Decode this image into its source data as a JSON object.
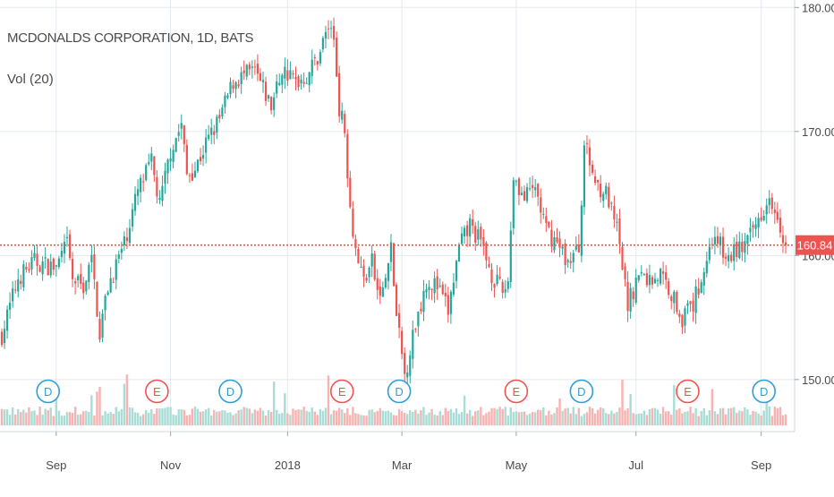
{
  "chart_data": {
    "type": "candlestick",
    "title": "MCDONALDS CORPORATION, 1D, BATS",
    "indicator": "Vol (20)",
    "price_axis": {
      "ticks": [
        {
          "value": 150,
          "label": "150.00"
        },
        {
          "value": 160,
          "label": "160.00"
        },
        {
          "value": 170,
          "label": "170.00"
        },
        {
          "value": 180,
          "label": "180.00"
        }
      ],
      "range": [
        145.8,
        180.6
      ]
    },
    "last_price": {
      "value": 160.84,
      "label": "160.84"
    },
    "time_axis": {
      "labels": [
        {
          "label": "Sep",
          "day": 20
        },
        {
          "label": "Nov",
          "day": 62
        },
        {
          "label": "2018",
          "day": 105
        },
        {
          "label": "Mar",
          "day": 147
        },
        {
          "label": "May",
          "day": 189
        },
        {
          "label": "Jul",
          "day": 233
        },
        {
          "label": "Sep",
          "day": 279
        }
      ],
      "days": 288
    },
    "events": [
      {
        "type": "D",
        "day": 17
      },
      {
        "type": "E",
        "day": 57
      },
      {
        "type": "D",
        "day": 84
      },
      {
        "type": "E",
        "day": 125
      },
      {
        "type": "D",
        "day": 146
      },
      {
        "type": "E",
        "day": 189
      },
      {
        "type": "D",
        "day": 213
      },
      {
        "type": "E",
        "day": 252
      },
      {
        "type": "D",
        "day": 280
      }
    ],
    "price_path": [
      [
        0,
        153.6
      ],
      [
        6,
        158.2
      ],
      [
        12,
        159.5
      ],
      [
        20,
        159.0
      ],
      [
        24,
        160.9
      ],
      [
        26,
        158.0
      ],
      [
        30,
        157.5
      ],
      [
        33,
        159.6
      ],
      [
        36,
        153.8
      ],
      [
        39,
        157.5
      ],
      [
        45,
        161.0
      ],
      [
        50,
        165.2
      ],
      [
        55,
        167.5
      ],
      [
        58,
        164.0
      ],
      [
        62,
        168.5
      ],
      [
        66,
        170.5
      ],
      [
        68,
        166.5
      ],
      [
        71,
        167.0
      ],
      [
        75,
        169.0
      ],
      [
        80,
        171.0
      ],
      [
        85,
        174.0
      ],
      [
        89,
        174.5
      ],
      [
        93,
        174.8
      ],
      [
        99,
        172.0
      ],
      [
        103,
        175.0
      ],
      [
        108,
        174.0
      ],
      [
        112,
        174.5
      ],
      [
        116,
        176.0
      ],
      [
        120,
        178.5
      ],
      [
        122,
        177.5
      ],
      [
        124,
        172.0
      ],
      [
        126,
        170.0
      ],
      [
        128,
        164.0
      ],
      [
        130,
        160.5
      ],
      [
        133,
        158.0
      ],
      [
        136,
        159.5
      ],
      [
        138,
        157.0
      ],
      [
        140,
        157.0
      ],
      [
        143,
        160.5
      ],
      [
        145,
        155.0
      ],
      [
        148,
        150.3
      ],
      [
        152,
        154.5
      ],
      [
        156,
        158.0
      ],
      [
        160,
        157.5
      ],
      [
        164,
        155.5
      ],
      [
        168,
        160.5
      ],
      [
        172,
        162.5
      ],
      [
        176,
        161.0
      ],
      [
        180,
        158.5
      ],
      [
        184,
        157.0
      ],
      [
        186,
        158.0
      ],
      [
        188,
        166.5
      ],
      [
        192,
        164.5
      ],
      [
        196,
        165.5
      ],
      [
        200,
        162.0
      ],
      [
        204,
        161.0
      ],
      [
        208,
        159.5
      ],
      [
        212,
        160.5
      ],
      [
        214,
        169.0
      ],
      [
        218,
        166.0
      ],
      [
        222,
        165.0
      ],
      [
        226,
        162.0
      ],
      [
        230,
        156.0
      ],
      [
        234,
        158.5
      ],
      [
        238,
        158.0
      ],
      [
        242,
        158.5
      ],
      [
        246,
        157.0
      ],
      [
        250,
        155.0
      ],
      [
        254,
        156.0
      ],
      [
        258,
        159.0
      ],
      [
        262,
        162.0
      ],
      [
        266,
        159.5
      ],
      [
        270,
        160.5
      ],
      [
        274,
        161.0
      ],
      [
        278,
        163.0
      ],
      [
        282,
        165.0
      ],
      [
        285,
        163.5
      ],
      [
        288,
        160.84
      ]
    ],
    "volume_axis": {
      "range": [
        0,
        3.0
      ],
      "unit": "relative"
    },
    "colors": {
      "up": "#26a69a",
      "down": "#ef5350",
      "volume_up": "#a8dcd5",
      "volume_down": "#f7b3b1",
      "grid": "#e3eaf0",
      "price_line": "#ef5350",
      "event_dividend": "#2d9fd4",
      "event_earnings": "#ef5350",
      "axis_text": "#4a4a4a"
    }
  }
}
